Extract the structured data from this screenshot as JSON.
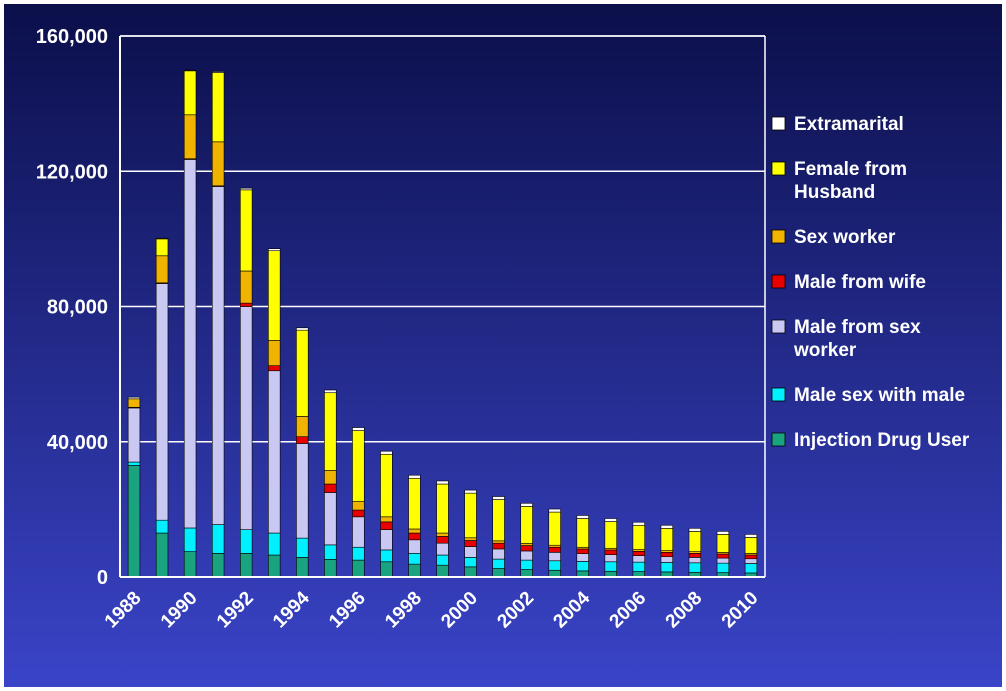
{
  "chart_data": {
    "type": "bar",
    "stacked": true,
    "colors": {
      "background_top": "#0b0f4a",
      "background_bottom": "#3a44c8",
      "gridline": "#ffffff",
      "axis_text": "#ffffff"
    },
    "categories": [
      "1988",
      "1989",
      "1990",
      "1991",
      "1992",
      "1993",
      "1994",
      "1995",
      "1996",
      "1997",
      "1998",
      "1999",
      "2000",
      "2001",
      "2002",
      "2003",
      "2004",
      "2005",
      "2006",
      "2007",
      "2008",
      "2009",
      "2010"
    ],
    "x_tick_labels": [
      "1988",
      "1990",
      "1992",
      "1994",
      "1996",
      "1998",
      "2000",
      "2002",
      "2004",
      "2006",
      "2008",
      "2010"
    ],
    "y_tick_labels": [
      "0",
      "40,000",
      "80,000",
      "120,000",
      "160,000"
    ],
    "ylim": [
      0,
      160000
    ],
    "y_tick_values": [
      0,
      40000,
      80000,
      120000,
      160000
    ],
    "grid": true,
    "legend_position": "right",
    "series": [
      {
        "name": "Injection Drug User",
        "legend_label_lines": [
          "Injection Drug User"
        ],
        "color": "#1aa37f",
        "values": [
          33000,
          13000,
          7500,
          7000,
          7000,
          6500,
          5800,
          5200,
          5000,
          4500,
          3800,
          3500,
          3000,
          2500,
          2200,
          2000,
          1800,
          1700,
          1600,
          1500,
          1400,
          1300,
          1200
        ]
      },
      {
        "name": "Male sex with male",
        "legend_label_lines": [
          "Male sex with male"
        ],
        "color": "#00f0ff",
        "values": [
          1000,
          3800,
          7000,
          8500,
          7000,
          6500,
          5700,
          4300,
          3800,
          3500,
          3200,
          3000,
          2800,
          2800,
          2800,
          2800,
          2800,
          2800,
          2800,
          2800,
          2800,
          2800,
          2800
        ]
      },
      {
        "name": "Male from sex worker",
        "legend_label_lines": [
          "Male from sex",
          "worker"
        ],
        "color": "#c8c8f2",
        "values": [
          16000,
          70000,
          109000,
          100000,
          66000,
          48000,
          28000,
          15500,
          9000,
          6000,
          4000,
          3500,
          3200,
          3000,
          2700,
          2500,
          2300,
          2100,
          1900,
          1700,
          1600,
          1500,
          1400
        ]
      },
      {
        "name": "Male from wife",
        "legend_label_lines": [
          "Male from wife"
        ],
        "color": "#e80000",
        "values": [
          200,
          200,
          200,
          200,
          1000,
          1500,
          2000,
          2500,
          2000,
          2300,
          2000,
          2000,
          1800,
          1700,
          1600,
          1500,
          1400,
          1400,
          1300,
          1300,
          1200,
          1200,
          1100
        ]
      },
      {
        "name": "Sex worker",
        "legend_label_lines": [
          "Sex worker"
        ],
        "color": "#f0b400",
        "values": [
          2500,
          8000,
          13000,
          13000,
          9500,
          7500,
          6000,
          4000,
          2500,
          1500,
          1200,
          1000,
          800,
          700,
          600,
          600,
          500,
          500,
          500,
          500,
          500,
          500,
          500
        ]
      },
      {
        "name": "Female from Husband",
        "legend_label_lines": [
          "Female from",
          "Husband"
        ],
        "color": "#ffff00",
        "values": [
          0,
          5000,
          13000,
          20500,
          24000,
          26500,
          25500,
          23000,
          21000,
          18500,
          15000,
          14500,
          13200,
          12200,
          11000,
          9800,
          8500,
          7900,
          7200,
          6600,
          6000,
          5300,
          4700
        ]
      },
      {
        "name": "Extramarital",
        "legend_label_lines": [
          "Extramarital"
        ],
        "color": "#ffffff",
        "values": [
          500,
          200,
          200,
          300,
          500,
          600,
          700,
          800,
          900,
          900,
          900,
          900,
          900,
          900,
          900,
          900,
          900,
          900,
          900,
          900,
          900,
          900,
          900
        ]
      }
    ]
  }
}
